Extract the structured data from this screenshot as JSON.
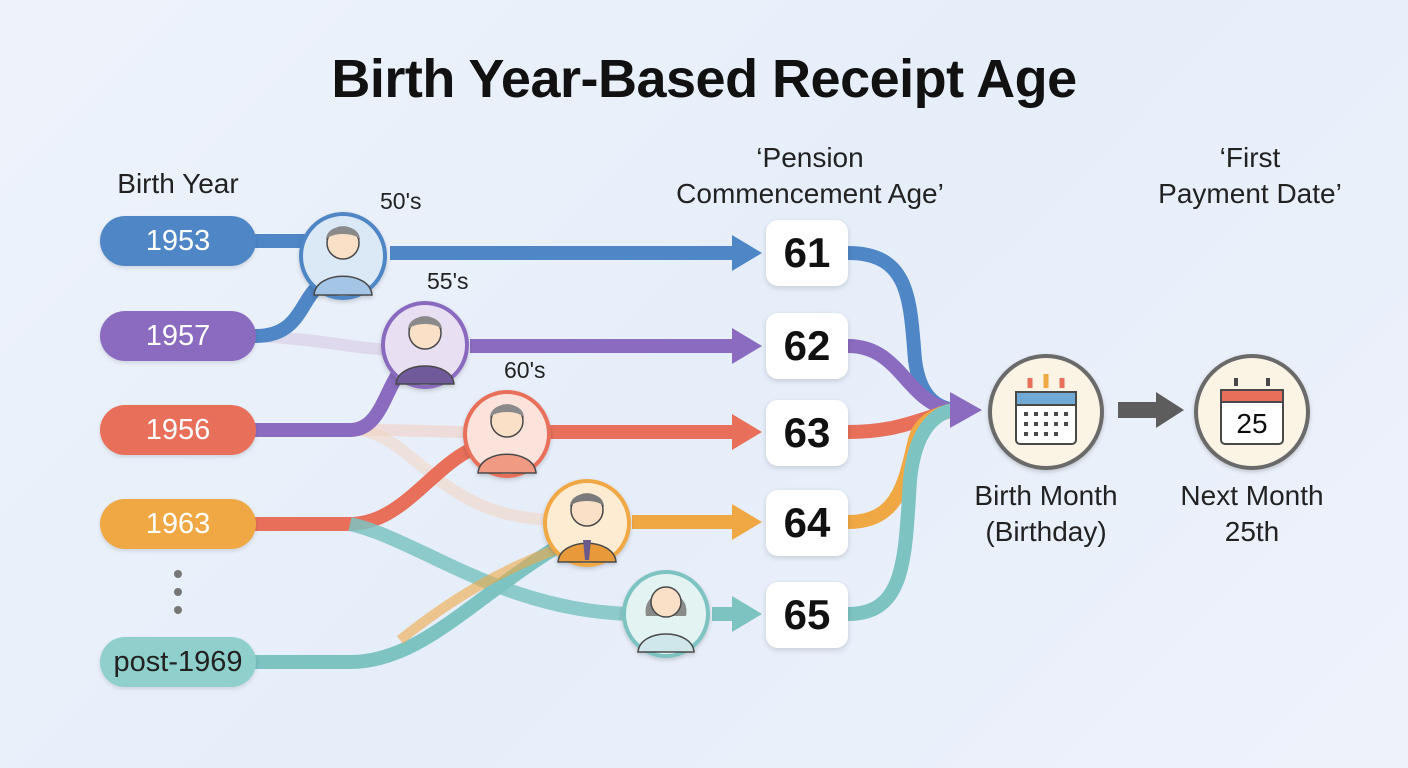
{
  "title": "Birth Year-Based Receipt Age",
  "headers": {
    "birth_year": "Birth Year",
    "pension_line1": "‘Pension",
    "pension_line2": "Commencement Age’",
    "payment_line1": "‘First",
    "payment_line2": "Payment Date’"
  },
  "birth_years": [
    "1953",
    "1957",
    "1956",
    "1963",
    "post-1969"
  ],
  "decades": [
    "50's",
    "55's",
    "60's"
  ],
  "ages": [
    "61",
    "62",
    "63",
    "64",
    "65"
  ],
  "birth_month": {
    "line1": "Birth Month",
    "line2": "(Birthday)"
  },
  "next_month": {
    "line1": "Next Month",
    "line2": "25th"
  },
  "calendar_number": "25",
  "colors": {
    "blue": "#4f86c6",
    "purple": "#8a6bbf",
    "red": "#e8705a",
    "orange": "#f0a844",
    "teal": "#7cc3c2"
  },
  "icons": [
    "person-icon",
    "calendar-icon",
    "arrow-right-icon",
    "ellipsis-icon"
  ]
}
